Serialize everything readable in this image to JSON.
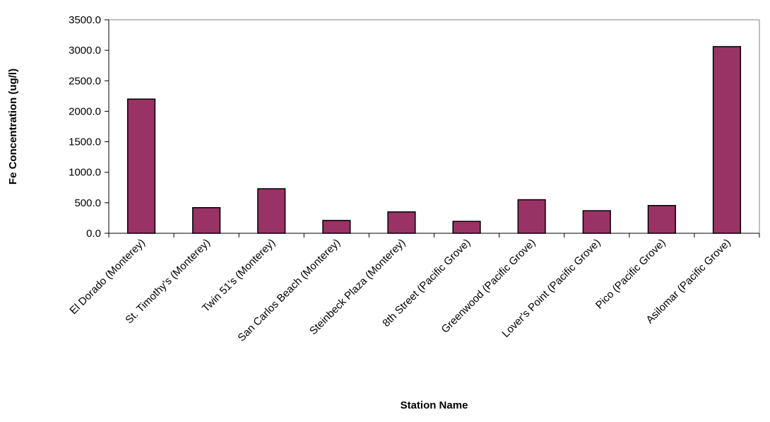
{
  "chart_data": {
    "type": "bar",
    "title": "",
    "xlabel": "Station Name",
    "ylabel": "Fe Concentration (ug/l)",
    "categories": [
      "El Dorado (Monterey)",
      "St. Timothy's (Monterey)",
      "Twin 51's (Monterey)",
      "San Carlos Beach (Monterey)",
      "Steinbeck Plaza (Monterey)",
      "8th Street (Pacific Grove)",
      "Greenwood (Pacific Grove)",
      "Lover's Point (Pacific Grove)",
      "Pico (Pacific Grove)",
      "Asilomar (Pacific Grove)"
    ],
    "values": [
      2200,
      420,
      730,
      210,
      350,
      195,
      550,
      370,
      455,
      3060
    ],
    "ylim": [
      0,
      3500
    ],
    "yticks": [
      0,
      500,
      1000,
      1500,
      2000,
      2500,
      3000,
      3500
    ],
    "ytick_labels": [
      "0.0",
      "500.0",
      "1000.0",
      "1500.0",
      "2000.0",
      "2500.0",
      "3000.0",
      "3500.0"
    ],
    "bar_color": "#993366",
    "grid": false,
    "legend": "none"
  }
}
